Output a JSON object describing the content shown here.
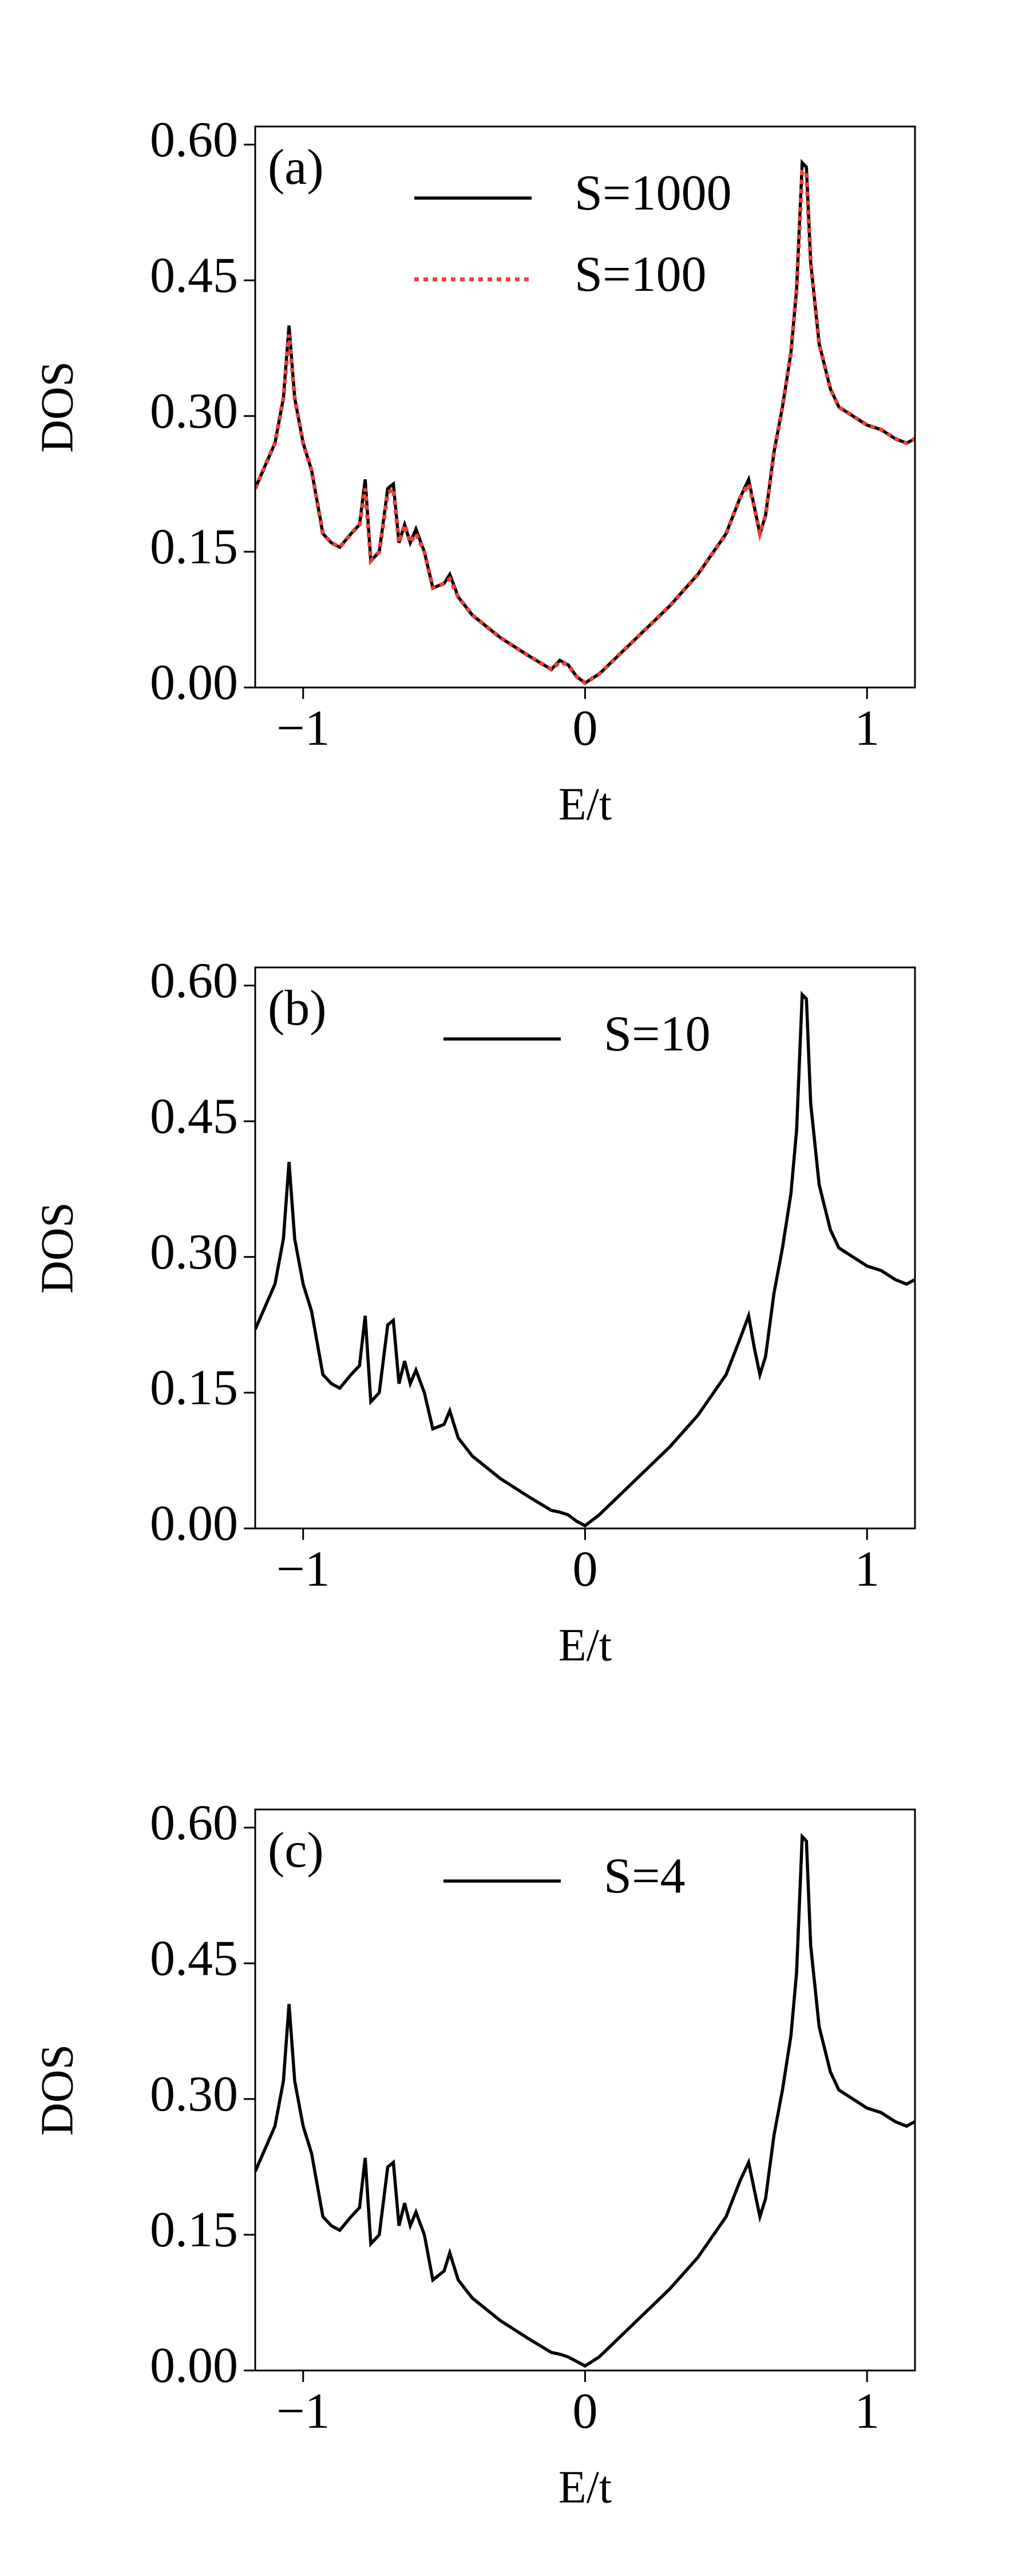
{
  "chart_data": [
    {
      "type": "line",
      "annotation": "(a)",
      "xlabel": "E/t",
      "ylabel": "DOS",
      "xlim": [
        -1.17,
        1.17
      ],
      "ylim": [
        0,
        0.62
      ],
      "xticks": [
        {
          "value": -1,
          "label": "−1"
        },
        0,
        1
      ],
      "yticks": [
        {
          "value": 0,
          "label": "0.00"
        },
        {
          "value": 0.15,
          "label": "0.15"
        },
        {
          "value": 0.3,
          "label": "0.30"
        },
        {
          "value": 0.45,
          "label": "0.45"
        },
        {
          "value": 0.6,
          "label": "0.60"
        }
      ],
      "legend": "upper center",
      "x": [
        -1.17,
        -1.1,
        -1.07,
        -1.05,
        -1.03,
        -1.0,
        -0.97,
        -0.93,
        -0.9,
        -0.87,
        -0.83,
        -0.8,
        -0.78,
        -0.76,
        -0.73,
        -0.7,
        -0.68,
        -0.66,
        -0.64,
        -0.62,
        -0.6,
        -0.57,
        -0.54,
        -0.5,
        -0.48,
        -0.45,
        -0.4,
        -0.3,
        -0.2,
        -0.12,
        -0.09,
        -0.06,
        -0.03,
        0,
        0.05,
        0.1,
        0.2,
        0.3,
        0.4,
        0.5,
        0.55,
        0.58,
        0.6,
        0.62,
        0.64,
        0.67,
        0.7,
        0.73,
        0.75,
        0.77,
        0.785,
        0.8,
        0.83,
        0.87,
        0.9,
        0.95,
        1.0,
        1.05,
        1.1,
        1.14,
        1.17
      ],
      "series": [
        {
          "name": "S=1000",
          "color": "#000000",
          "style": "solid",
          "values": [
            0.22,
            0.27,
            0.32,
            0.4,
            0.32,
            0.27,
            0.24,
            0.17,
            0.16,
            0.155,
            0.17,
            0.18,
            0.23,
            0.14,
            0.15,
            0.22,
            0.225,
            0.16,
            0.18,
            0.16,
            0.175,
            0.15,
            0.11,
            0.115,
            0.125,
            0.1,
            0.08,
            0.055,
            0.035,
            0.02,
            0.03,
            0.025,
            0.012,
            0.005,
            0.015,
            0.03,
            0.06,
            0.09,
            0.125,
            0.17,
            0.21,
            0.23,
            0.2,
            0.17,
            0.19,
            0.26,
            0.31,
            0.37,
            0.44,
            0.58,
            0.575,
            0.47,
            0.38,
            0.33,
            0.31,
            0.3,
            0.29,
            0.285,
            0.275,
            0.27,
            0.275
          ]
        },
        {
          "name": "S=100",
          "color": "#e8413a",
          "style": "dotted",
          "values": [
            0.22,
            0.27,
            0.32,
            0.39,
            0.32,
            0.27,
            0.24,
            0.17,
            0.16,
            0.155,
            0.17,
            0.18,
            0.22,
            0.14,
            0.15,
            0.215,
            0.22,
            0.16,
            0.18,
            0.16,
            0.17,
            0.15,
            0.11,
            0.115,
            0.12,
            0.1,
            0.08,
            0.055,
            0.035,
            0.02,
            0.028,
            0.025,
            0.012,
            0.005,
            0.015,
            0.03,
            0.06,
            0.09,
            0.125,
            0.17,
            0.21,
            0.225,
            0.2,
            0.17,
            0.19,
            0.26,
            0.31,
            0.37,
            0.44,
            0.57,
            0.57,
            0.47,
            0.38,
            0.33,
            0.31,
            0.3,
            0.29,
            0.285,
            0.275,
            0.27,
            0.275
          ]
        }
      ]
    },
    {
      "type": "line",
      "annotation": "(b)",
      "xlabel": "E/t",
      "ylabel": "DOS",
      "xlim": [
        -1.17,
        1.17
      ],
      "ylim": [
        0,
        0.62
      ],
      "xticks": [
        {
          "value": -1,
          "label": "−1"
        },
        0,
        1
      ],
      "yticks": [
        {
          "value": 0,
          "label": "0.00"
        },
        {
          "value": 0.15,
          "label": "0.15"
        },
        {
          "value": 0.3,
          "label": "0.30"
        },
        {
          "value": 0.45,
          "label": "0.45"
        },
        {
          "value": 0.6,
          "label": "0.60"
        }
      ],
      "legend": "upper center",
      "x": [
        -1.17,
        -1.1,
        -1.07,
        -1.05,
        -1.03,
        -1.0,
        -0.97,
        -0.93,
        -0.9,
        -0.87,
        -0.83,
        -0.8,
        -0.78,
        -0.76,
        -0.73,
        -0.7,
        -0.68,
        -0.66,
        -0.64,
        -0.62,
        -0.6,
        -0.57,
        -0.54,
        -0.5,
        -0.48,
        -0.45,
        -0.4,
        -0.3,
        -0.2,
        -0.12,
        -0.09,
        -0.06,
        -0.03,
        0,
        0.05,
        0.1,
        0.2,
        0.3,
        0.4,
        0.5,
        0.55,
        0.58,
        0.6,
        0.62,
        0.64,
        0.67,
        0.7,
        0.73,
        0.75,
        0.77,
        0.785,
        0.8,
        0.83,
        0.87,
        0.9,
        0.95,
        1.0,
        1.05,
        1.1,
        1.14,
        1.17
      ],
      "series": [
        {
          "name": "S=10",
          "color": "#000000",
          "style": "solid",
          "values": [
            0.22,
            0.27,
            0.32,
            0.405,
            0.32,
            0.27,
            0.24,
            0.17,
            0.16,
            0.155,
            0.17,
            0.18,
            0.235,
            0.14,
            0.15,
            0.225,
            0.23,
            0.16,
            0.185,
            0.16,
            0.175,
            0.15,
            0.11,
            0.115,
            0.13,
            0.1,
            0.08,
            0.055,
            0.035,
            0.02,
            0.018,
            0.015,
            0.008,
            0.003,
            0.015,
            0.03,
            0.06,
            0.09,
            0.125,
            0.17,
            0.21,
            0.235,
            0.2,
            0.17,
            0.19,
            0.26,
            0.31,
            0.37,
            0.44,
            0.59,
            0.585,
            0.47,
            0.38,
            0.33,
            0.31,
            0.3,
            0.29,
            0.285,
            0.275,
            0.27,
            0.275
          ]
        }
      ]
    },
    {
      "type": "line",
      "annotation": "(c)",
      "xlabel": "E/t",
      "ylabel": "DOS",
      "xlim": [
        -1.17,
        1.17
      ],
      "ylim": [
        0,
        0.62
      ],
      "xticks": [
        {
          "value": -1,
          "label": "−1"
        },
        0,
        1
      ],
      "yticks": [
        {
          "value": 0,
          "label": "0.00"
        },
        {
          "value": 0.15,
          "label": "0.15"
        },
        {
          "value": 0.3,
          "label": "0.30"
        },
        {
          "value": 0.45,
          "label": "0.45"
        },
        {
          "value": 0.6,
          "label": "0.60"
        }
      ],
      "legend": "upper center",
      "x": [
        -1.17,
        -1.1,
        -1.07,
        -1.05,
        -1.03,
        -1.0,
        -0.97,
        -0.93,
        -0.9,
        -0.87,
        -0.83,
        -0.8,
        -0.78,
        -0.76,
        -0.73,
        -0.7,
        -0.68,
        -0.66,
        -0.64,
        -0.62,
        -0.6,
        -0.57,
        -0.54,
        -0.5,
        -0.48,
        -0.45,
        -0.4,
        -0.3,
        -0.2,
        -0.12,
        -0.09,
        -0.06,
        -0.03,
        0,
        0.05,
        0.1,
        0.2,
        0.3,
        0.4,
        0.5,
        0.55,
        0.58,
        0.6,
        0.62,
        0.64,
        0.67,
        0.7,
        0.73,
        0.75,
        0.77,
        0.785,
        0.8,
        0.83,
        0.87,
        0.9,
        0.95,
        1.0,
        1.05,
        1.1,
        1.14,
        1.17
      ],
      "series": [
        {
          "name": "S=4",
          "color": "#000000",
          "style": "solid",
          "values": [
            0.22,
            0.27,
            0.32,
            0.405,
            0.32,
            0.27,
            0.24,
            0.17,
            0.16,
            0.155,
            0.17,
            0.18,
            0.235,
            0.14,
            0.15,
            0.225,
            0.23,
            0.16,
            0.185,
            0.16,
            0.175,
            0.15,
            0.1,
            0.11,
            0.13,
            0.1,
            0.08,
            0.055,
            0.035,
            0.02,
            0.018,
            0.015,
            0.01,
            0.005,
            0.015,
            0.03,
            0.06,
            0.09,
            0.125,
            0.17,
            0.21,
            0.23,
            0.2,
            0.17,
            0.19,
            0.26,
            0.31,
            0.37,
            0.44,
            0.59,
            0.585,
            0.47,
            0.38,
            0.33,
            0.31,
            0.3,
            0.29,
            0.285,
            0.275,
            0.27,
            0.275
          ]
        }
      ]
    }
  ]
}
